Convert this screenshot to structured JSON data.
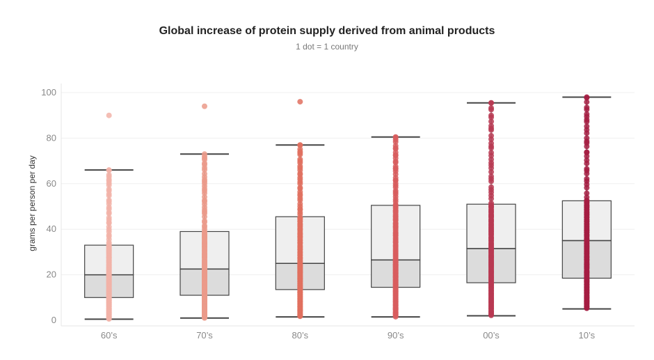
{
  "title": "Global increase of protein supply derived from animal products",
  "subtitle": "1 dot = 1 country",
  "chart_data": {
    "type": "boxplot",
    "title": "Global increase of protein supply derived from animal products",
    "subtitle": "1 dot = 1 country",
    "xlabel": "",
    "ylabel": "grams per person per day",
    "ylim": [
      0,
      102
    ],
    "yticks": [
      0,
      20,
      40,
      60,
      80,
      100
    ],
    "grid": true,
    "categories": [
      "60’s",
      "70’s",
      "80’s",
      "90’s",
      "00’s",
      "10’s"
    ],
    "boxes": [
      {
        "category": "60’s",
        "min": 0.5,
        "q1": 10,
        "median": 20,
        "q3": 33,
        "max": 66,
        "outliers": [
          90
        ]
      },
      {
        "category": "70’s",
        "min": 1,
        "q1": 11,
        "median": 22.5,
        "q3": 39,
        "max": 73,
        "outliers": [
          94
        ]
      },
      {
        "category": "80’s",
        "min": 1.5,
        "q1": 13.5,
        "median": 25,
        "q3": 45.5,
        "max": 77,
        "outliers": [
          96
        ]
      },
      {
        "category": "90’s",
        "min": 1.5,
        "q1": 14.5,
        "median": 26.5,
        "q3": 50.5,
        "max": 80.5,
        "outliers": []
      },
      {
        "category": "00’s",
        "min": 2,
        "q1": 16.5,
        "median": 31.5,
        "q3": 51,
        "max": 95.5,
        "outliers": []
      },
      {
        "category": "10’s",
        "min": 5,
        "q1": 18.5,
        "median": 35,
        "q3": 52.5,
        "max": 98,
        "outliers": []
      }
    ],
    "dot_colors": [
      "#f2b3a8",
      "#eb9a8a",
      "#e0705f",
      "#d85d5e",
      "#b83a52",
      "#a51d42"
    ]
  }
}
